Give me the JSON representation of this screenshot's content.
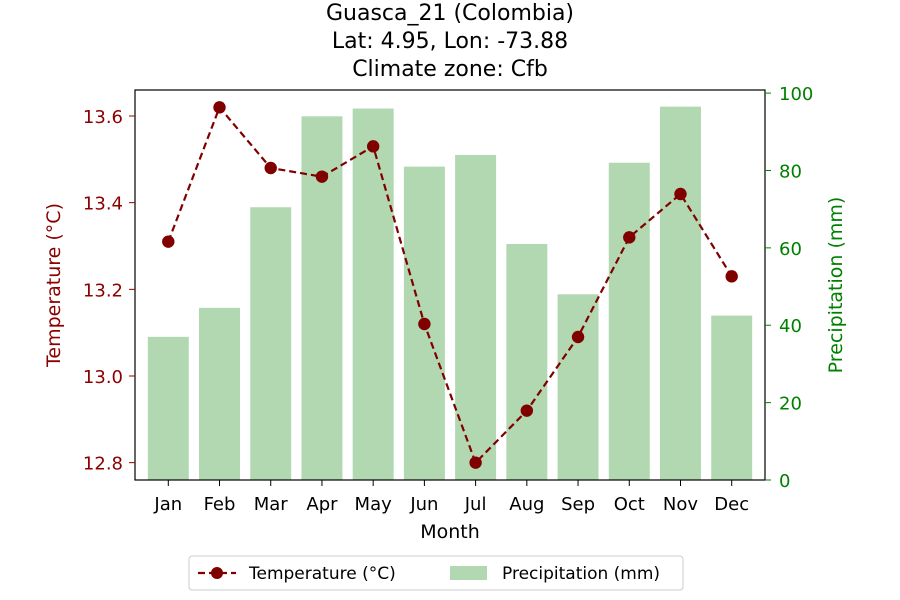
{
  "chart_data": {
    "type": "bar+line",
    "title_lines": [
      "Guasca_21 (Colombia)",
      "Lat: 4.95, Lon: -73.88",
      "Climate zone: Cfb"
    ],
    "xlabel": "Month",
    "categories": [
      "Jan",
      "Feb",
      "Mar",
      "Apr",
      "May",
      "Jun",
      "Jul",
      "Aug",
      "Sep",
      "Oct",
      "Nov",
      "Dec"
    ],
    "y_left": {
      "label": "Temperature (°C)",
      "color": "#8b0000",
      "ylim": [
        12.76,
        13.66
      ],
      "ticks": [
        12.8,
        13.0,
        13.2,
        13.4,
        13.6
      ],
      "tick_labels": [
        "12.8",
        "13.0",
        "13.2",
        "13.4",
        "13.6"
      ]
    },
    "y_right": {
      "label": "Precipitation (mm)",
      "color": "#008000",
      "ylim": [
        0,
        100.8
      ],
      "ticks": [
        0,
        20,
        40,
        60,
        80,
        100
      ],
      "tick_labels": [
        "0",
        "20",
        "40",
        "60",
        "80",
        "100"
      ]
    },
    "series": [
      {
        "name": "Temperature (°C)",
        "kind": "line",
        "axis": "left",
        "color": "#800000",
        "style": "dashed, circle markers",
        "values": [
          13.31,
          13.62,
          13.48,
          13.46,
          13.53,
          13.12,
          12.8,
          12.92,
          13.09,
          13.32,
          13.42,
          13.23
        ]
      },
      {
        "name": "Precipitation (mm)",
        "kind": "bar",
        "axis": "right",
        "color": "#b2d8b2",
        "values": [
          37,
          44.5,
          70.5,
          94,
          96,
          81,
          84,
          61,
          48,
          82,
          96.5,
          42.5
        ]
      }
    ],
    "legend_position": "bottom-center",
    "legend_entries": [
      "Temperature (°C)",
      "Precipitation (mm)"
    ],
    "grid": false
  }
}
